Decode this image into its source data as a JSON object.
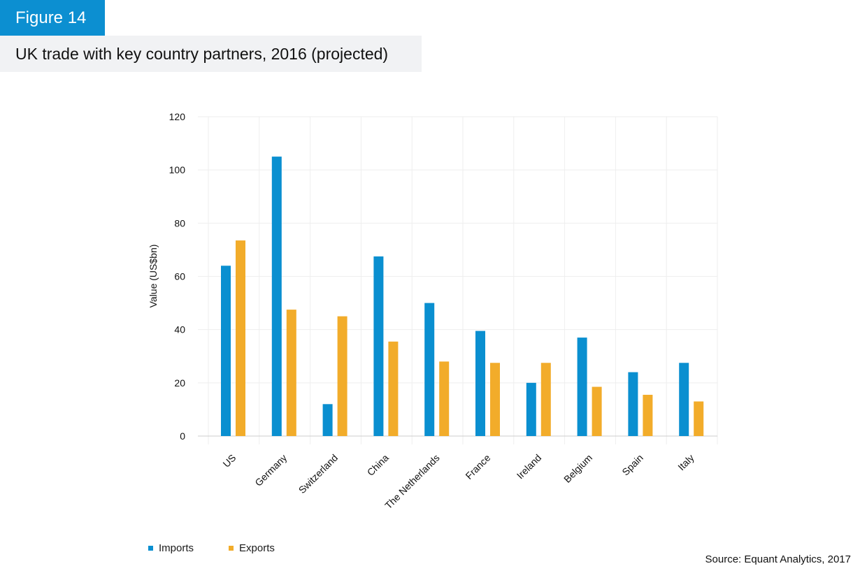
{
  "figure_label": "Figure 14",
  "title": "UK trade with key country partners, 2016 (projected)",
  "source": "Source: Equant Analytics, 2017",
  "colors": {
    "imports": "#0a8fd0",
    "exports": "#f2ac2a",
    "grid": "#eeeeee",
    "axis": "#cccccc"
  },
  "chart_data": {
    "type": "bar",
    "ylabel": "Value (US$bn)",
    "xlabel": "",
    "ylim": [
      0,
      120
    ],
    "yticks": [
      0,
      20,
      40,
      60,
      80,
      100,
      120
    ],
    "grid": true,
    "legend_position": "bottom-left",
    "categories": [
      "US",
      "Germany",
      "Switzerland",
      "China",
      "The Netherlands",
      "France",
      "Ireland",
      "Belgium",
      "Spain",
      "Italy"
    ],
    "series": [
      {
        "name": "Imports",
        "values": [
          64,
          105,
          12,
          67.5,
          50,
          39.5,
          20,
          37,
          24,
          27.5
        ]
      },
      {
        "name": "Exports",
        "values": [
          73.5,
          47.5,
          45,
          35.5,
          28,
          27.5,
          27.5,
          18.5,
          15.5,
          13
        ]
      }
    ]
  }
}
